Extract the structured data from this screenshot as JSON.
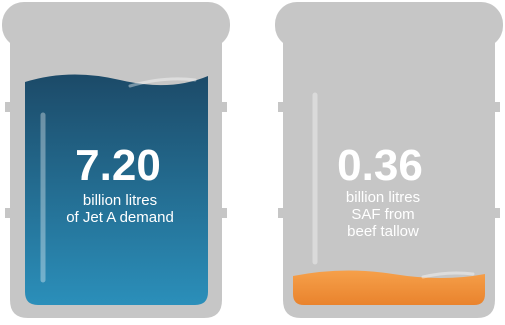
{
  "barrels": [
    {
      "value": "7.20",
      "label_lines": [
        "billion litres",
        "of Jet A demand"
      ]
    },
    {
      "value": "0.36",
      "label_lines": [
        "billion litres",
        "SAF from",
        "beef tallow"
      ]
    }
  ]
}
